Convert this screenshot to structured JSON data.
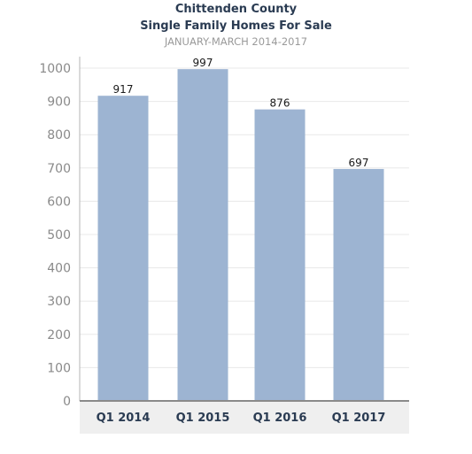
{
  "chart_data": {
    "type": "bar",
    "title": "Chittenden County",
    "subtitle": "Single Family Homes For Sale",
    "subtitle2": "JANUARY-MARCH 2014-2017",
    "categories": [
      "Q1 2014",
      "Q1 2015",
      "Q1 2016",
      "Q1 2017"
    ],
    "values": [
      917,
      997,
      876,
      697
    ],
    "data_labels": [
      "917",
      "997",
      "876",
      "697"
    ],
    "yticks": [
      0,
      100,
      200,
      300,
      400,
      500,
      600,
      700,
      800,
      900,
      1000
    ],
    "ylim": [
      0,
      1000
    ],
    "grid": true,
    "legend": "none",
    "colors": {
      "bar": "#9db4d2",
      "plot_background": "#ffffff",
      "x_label_band": "#efefef",
      "gridline": "#e8e8e8",
      "axis": "#8a8a8a"
    }
  }
}
